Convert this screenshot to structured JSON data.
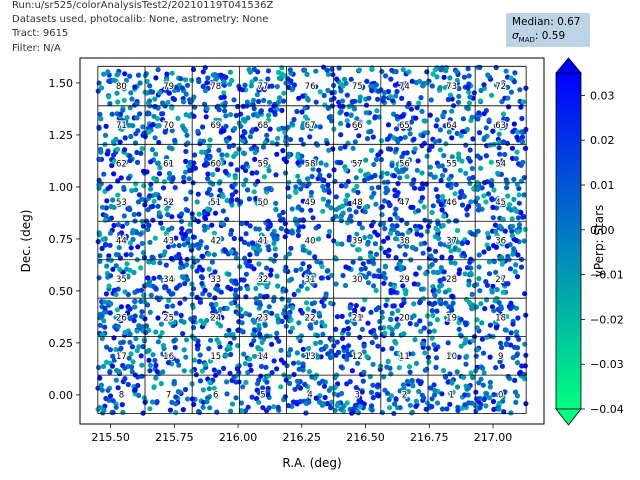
{
  "header": {
    "line1": "Run:u/sr525/colorAnalysisTest2/20210119T041536Z",
    "line2": "Datasets used, photocalib: None, astrometry: None",
    "line3": "Tract: 9615",
    "line4": "Filter: N/A"
  },
  "stats": {
    "median_label": "Median: 0.67",
    "sigma_prefix": "σ",
    "sigma_sub": "MAD",
    "sigma_value": ": 0.59"
  },
  "colors": {
    "cmap_low": "#00ff80",
    "cmap_high": "#0000ff",
    "grid": "#000000"
  },
  "chart_data": {
    "type": "scatter",
    "xlabel": "R.A. (deg)",
    "ylabel": "Dec. (deg)",
    "xlim": [
      215.38,
      217.2
    ],
    "ylim": [
      -0.14,
      1.62
    ],
    "xticks": [
      "215.50",
      "215.75",
      "216.00",
      "216.25",
      "216.50",
      "216.75",
      "217.00"
    ],
    "xtick_values": [
      215.5,
      215.75,
      216.0,
      216.25,
      216.5,
      216.75,
      217.0
    ],
    "yticks": [
      "0.00",
      "0.25",
      "0.50",
      "0.75",
      "1.00",
      "1.25",
      "1.50"
    ],
    "ytick_values": [
      0.0,
      0.25,
      0.5,
      0.75,
      1.0,
      1.25,
      1.5
    ],
    "colorbar": {
      "label": "yPerp: Stars",
      "range": [
        -0.04,
        0.035
      ],
      "ticks": [
        "0.03",
        "0.02",
        "0.01",
        "0.00",
        "−0.01",
        "−0.02",
        "−0.03",
        "−0.04"
      ],
      "tick_values": [
        0.03,
        0.02,
        0.01,
        0.0,
        -0.01,
        -0.02,
        -0.03,
        -0.04
      ],
      "extend": "both"
    },
    "patch_grid": {
      "ra_edges": [
        215.45,
        215.635,
        215.82,
        216.005,
        216.19,
        216.375,
        216.56,
        216.745,
        216.93,
        217.13
      ],
      "dec_edges": [
        -0.09,
        0.095,
        0.28,
        0.465,
        0.65,
        0.835,
        1.02,
        1.205,
        1.39,
        1.58
      ],
      "patch_ids": [
        [
          0,
          1,
          2,
          3,
          4,
          5,
          6,
          7,
          8
        ],
        [
          9,
          10,
          11,
          12,
          13,
          14,
          15,
          16,
          17
        ],
        [
          18,
          19,
          20,
          21,
          22,
          23,
          24,
          25,
          26
        ],
        [
          27,
          28,
          29,
          30,
          31,
          32,
          33,
          34,
          35
        ],
        [
          36,
          37,
          38,
          39,
          40,
          41,
          42,
          43,
          44
        ],
        [
          45,
          46,
          47,
          48,
          49,
          50,
          51,
          52,
          53
        ],
        [
          54,
          55,
          56,
          57,
          58,
          59,
          60,
          61,
          62
        ],
        [
          63,
          64,
          65,
          66,
          67,
          68,
          69,
          70,
          71
        ],
        [
          72,
          73,
          74,
          75,
          76,
          77,
          78,
          79,
          80
        ]
      ]
    },
    "point_count_note": "dense uniform scatter of stars colored by yPerp over all patches",
    "grid": false,
    "legend": "none"
  }
}
